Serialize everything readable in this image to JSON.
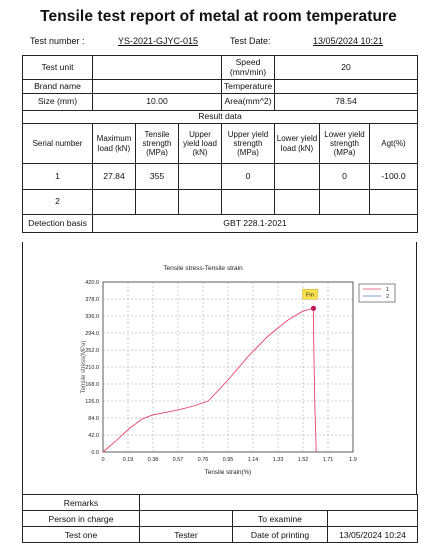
{
  "title": "Tensile test report of metal at room temperature",
  "header": {
    "test_number_label": "Test number :",
    "test_number_value": "YS-2021-GJYC-015",
    "test_date_label": "Test Date:",
    "test_date_value": "13/05/2024 10:21"
  },
  "info": {
    "test_unit_label": "Test unit",
    "speed_label": "Speed (mm/min)",
    "speed_value": "20",
    "brand_name_label": "Brand name",
    "temperature_label": "Temperature",
    "size_label": "Size (mm)",
    "size_value": "10.00",
    "area_label": "Area(mm^2)",
    "area_value": "78.54"
  },
  "result": {
    "section_label": "Result data",
    "columns": [
      "Serial number",
      "Maximum load (kN)",
      "Tensile strength (MPa)",
      "Upper yield load (kN)",
      "Upper yield strength (MPa)",
      "Lower yield load (kN)",
      "Lower yield strength (MPa)",
      "Agt(%)"
    ],
    "rows": [
      [
        "1",
        "27.84",
        "355",
        "",
        "0",
        "",
        "0",
        "-100.0"
      ],
      [
        "2",
        "",
        "",
        "",
        "",
        "",
        "",
        ""
      ]
    ],
    "detection_basis_label": "Detection basis",
    "detection_basis_value": "GBT 228.1-2021"
  },
  "chart_data": {
    "type": "line",
    "title": "Tensile stress-Tensile strain",
    "xlabel": "Tensile strain(%)",
    "ylabel": "Tensile stress(MPa)",
    "xlim": [
      0,
      1.9
    ],
    "ylim": [
      0,
      420
    ],
    "xticks": [
      "0",
      "0.19",
      "0.38",
      "0.57",
      "0.76",
      "0.95",
      "1.14",
      "1.33",
      "1.52",
      "1.71",
      "1.9"
    ],
    "yticks": [
      "0.0",
      "42.0",
      "84.0",
      "126.0",
      "168.0",
      "210.0",
      "252.0",
      "294.0",
      "336.0",
      "378.0",
      "420.0"
    ],
    "grid": true,
    "legend_position": "top-right",
    "annotation": {
      "label": "Fm",
      "x": 1.6,
      "y": 355
    },
    "series": [
      {
        "name": "1",
        "color": "#e8436b",
        "x": [
          0,
          0.1,
          0.2,
          0.3,
          0.38,
          0.48,
          0.6,
          0.7,
          0.8,
          0.95,
          1.1,
          1.25,
          1.4,
          1.52,
          1.6,
          1.6,
          1.61,
          1.62
        ],
        "y": [
          0,
          28,
          58,
          82,
          92,
          98,
          106,
          115,
          126,
          178,
          235,
          285,
          325,
          348,
          355,
          300,
          120,
          0
        ]
      },
      {
        "name": "2",
        "color": "#4a7fd4",
        "x": [],
        "y": []
      }
    ]
  },
  "footer": {
    "remarks_label": "Remarks",
    "person_in_charge_label": "Person in charge",
    "to_examine_label": "To examine",
    "test_one_label": "Test one",
    "tester_value": "Tester",
    "date_of_printing_label": "Date of printing",
    "date_of_printing_value": "13/05/2024 10:24"
  }
}
